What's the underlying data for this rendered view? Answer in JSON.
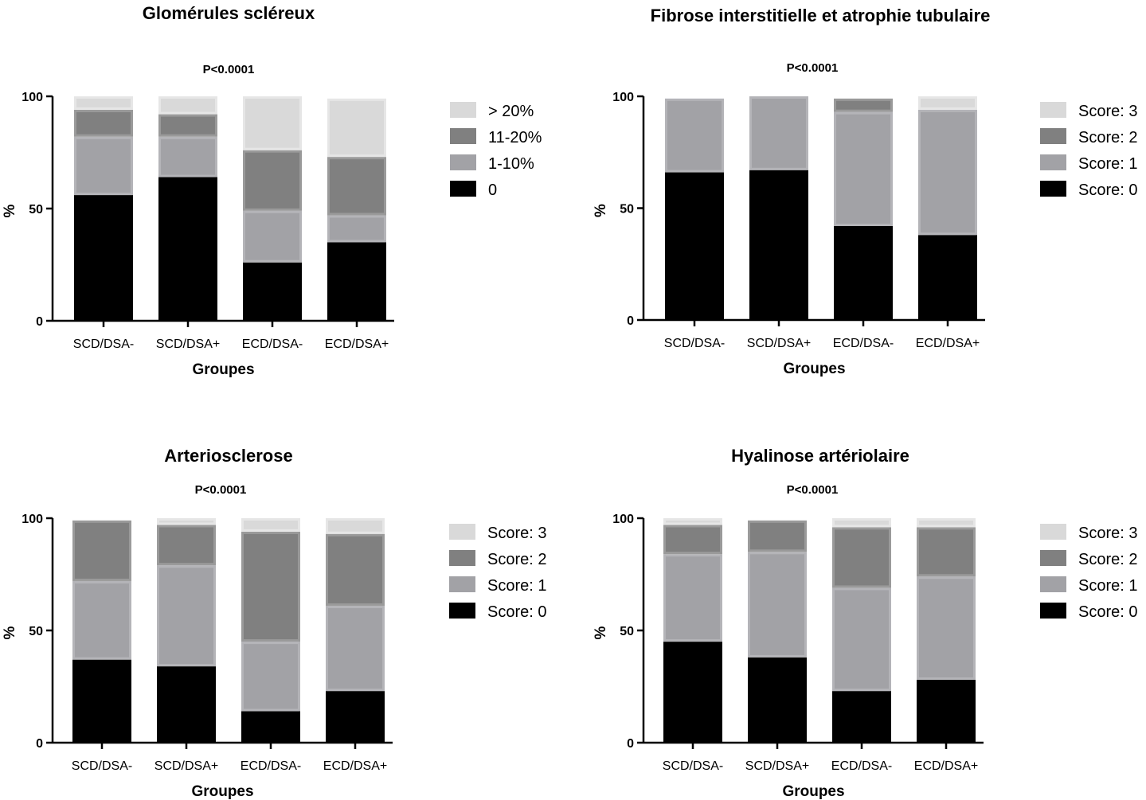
{
  "figure": {
    "colors": {
      "s0": "#000000",
      "s1": "#a2a2a6",
      "s2": "#808080",
      "s3": "#d9d9d9",
      "edge1": "#b4b4b8",
      "edge2": "#9a9a9a",
      "edge3": "#e6e6e6"
    }
  },
  "chart_data": [
    {
      "type": "bar",
      "stacked": true,
      "title": "Glomérules scléreux",
      "annotation": "P<0.0001",
      "xlabel": "Groupes",
      "ylabel": "%",
      "ylim": [
        0,
        100
      ],
      "yticks": [
        "0",
        "50",
        "100"
      ],
      "categories": [
        "SCD/DSA-",
        "SCD/DSA+",
        "ECD/DSA-",
        "ECD/DSA+"
      ],
      "legend_position": "right",
      "series": [
        {
          "name": "0",
          "values": [
            56,
            64,
            26,
            35
          ]
        },
        {
          "name": "1-10%",
          "values": [
            26,
            18,
            23,
            12
          ]
        },
        {
          "name": "11-20%",
          "values": [
            12,
            10,
            27,
            26
          ]
        },
        {
          "name": "> 20%",
          "values": [
            6,
            8,
            24,
            26
          ]
        }
      ]
    },
    {
      "type": "bar",
      "stacked": true,
      "title": "Fibrose interstitielle et atrophie tubulaire",
      "annotation": "P<0.0001",
      "xlabel": "Groupes",
      "ylabel": "%",
      "ylim": [
        0,
        100
      ],
      "yticks": [
        "0",
        "50",
        "100"
      ],
      "categories": [
        "SCD/DSA-",
        "SCD/DSA+",
        "ECD/DSA-",
        "ECD/DSA+"
      ],
      "legend_position": "right",
      "series": [
        {
          "name": "Score: 0",
          "values": [
            66,
            67,
            42,
            38
          ]
        },
        {
          "name": "Score: 1",
          "values": [
            33,
            33,
            51,
            56
          ]
        },
        {
          "name": "Score: 2",
          "values": [
            1,
            0,
            6,
            0
          ]
        },
        {
          "name": "Score: 3",
          "values": [
            0,
            0,
            1,
            6
          ]
        }
      ]
    },
    {
      "type": "bar",
      "stacked": true,
      "title": "Arteriosclerose",
      "annotation": "P<0.0001",
      "xlabel": "Groupes",
      "ylabel": "%",
      "ylim": [
        0,
        100
      ],
      "yticks": [
        "0",
        "50",
        "100"
      ],
      "categories": [
        "SCD/DSA-",
        "SCD/DSA+",
        "ECD/DSA-",
        "ECD/DSA+"
      ],
      "legend_position": "right",
      "series": [
        {
          "name": "Score: 0",
          "values": [
            37,
            34,
            14,
            23
          ]
        },
        {
          "name": "Score: 1",
          "values": [
            35,
            45,
            31,
            38
          ]
        },
        {
          "name": "Score: 2",
          "values": [
            27,
            18,
            49,
            32
          ]
        },
        {
          "name": "Score: 3",
          "values": [
            1,
            3,
            6,
            7
          ]
        }
      ]
    },
    {
      "type": "bar",
      "stacked": true,
      "title": "Hyalinose artériolaire",
      "annotation": "P<0.0001",
      "xlabel": "Groupes",
      "ylabel": "%",
      "ylim": [
        0,
        100
      ],
      "yticks": [
        "0",
        "50",
        "100"
      ],
      "categories": [
        "SCD/DSA-",
        "SCD/DSA+",
        "ECD/DSA-",
        "ECD/DSA+"
      ],
      "legend_position": "right",
      "series": [
        {
          "name": "Score: 0",
          "values": [
            45,
            38,
            23,
            28
          ]
        },
        {
          "name": "Score: 1",
          "values": [
            39,
            47,
            46,
            46
          ]
        },
        {
          "name": "Score: 2",
          "values": [
            13,
            14,
            27,
            22
          ]
        },
        {
          "name": "Score: 3",
          "values": [
            3,
            1,
            4,
            4
          ]
        }
      ]
    }
  ]
}
